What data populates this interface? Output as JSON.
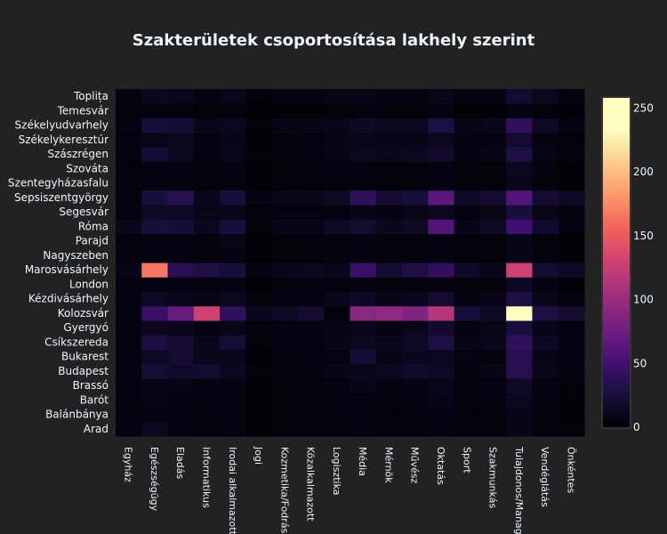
{
  "chart_data": {
    "type": "heatmap",
    "title": "Szakterületek csoportosítása lakhely szerint",
    "x_categories": [
      "Egyház",
      "Egészségügy",
      "Eladás",
      "Informatikus",
      "Irodai alkalmazott",
      "Jogi",
      "Kozmetika/Fodrász",
      "Közalkalmazott",
      "Logisztika",
      "Média",
      "Mérnök",
      "Művész",
      "Oktatás",
      "Sport",
      "Szakmunkás",
      "Tulajdonos/Manager",
      "Vendéglátás",
      "Önkéntes"
    ],
    "y_categories": [
      "Arad",
      "Balánbánya",
      "Barót",
      "Brassó",
      "Budapest",
      "Bukarest",
      "Csíkszereda",
      "Gyergyó",
      "Kolozsvár",
      "Kézdivásárhely",
      "London",
      "Marosvásárhely",
      "Nagyszeben",
      "Parajd",
      "Róma",
      "Segesvár",
      "Sepsiszentgyörgy",
      "Szentegyházasfalu",
      "Szováta",
      "Szászrégen",
      "Székelykeresztúr",
      "Székelyudvarhely",
      "Temesvár",
      "Toplița"
    ],
    "z": [
      [
        5,
        12,
        6,
        4,
        5,
        2,
        3,
        3,
        4,
        5,
        4,
        4,
        6,
        3,
        4,
        8,
        4,
        3
      ],
      [
        4,
        6,
        5,
        4,
        5,
        2,
        3,
        4,
        6,
        5,
        3,
        4,
        6,
        3,
        4,
        8,
        4,
        2
      ],
      [
        5,
        8,
        6,
        5,
        6,
        2,
        3,
        4,
        5,
        5,
        4,
        5,
        9,
        4,
        5,
        12,
        5,
        3
      ],
      [
        5,
        9,
        7,
        6,
        6,
        2,
        3,
        4,
        5,
        8,
        6,
        6,
        10,
        4,
        5,
        15,
        6,
        3
      ],
      [
        6,
        22,
        18,
        20,
        12,
        3,
        5,
        6,
        8,
        10,
        12,
        18,
        14,
        6,
        8,
        35,
        10,
        5
      ],
      [
        6,
        15,
        20,
        10,
        10,
        2,
        4,
        5,
        6,
        22,
        8,
        12,
        12,
        5,
        4,
        35,
        8,
        4
      ],
      [
        6,
        28,
        20,
        10,
        22,
        3,
        6,
        6,
        8,
        12,
        10,
        15,
        30,
        8,
        10,
        40,
        14,
        6
      ],
      [
        5,
        12,
        10,
        6,
        8,
        3,
        5,
        6,
        7,
        10,
        6,
        10,
        18,
        6,
        8,
        25,
        8,
        4
      ],
      [
        6,
        45,
        70,
        130,
        40,
        10,
        15,
        20,
        3,
        90,
        95,
        85,
        115,
        25,
        15,
        255,
        28,
        20
      ],
      [
        6,
        15,
        10,
        8,
        12,
        3,
        6,
        6,
        10,
        14,
        8,
        10,
        20,
        6,
        8,
        28,
        10,
        4
      ],
      [
        4,
        6,
        5,
        4,
        6,
        2,
        4,
        5,
        4,
        6,
        4,
        4,
        6,
        3,
        3,
        14,
        6,
        2
      ],
      [
        8,
        165,
        35,
        30,
        25,
        5,
        10,
        12,
        10,
        45,
        20,
        30,
        40,
        15,
        10,
        130,
        20,
        15
      ],
      [
        4,
        6,
        5,
        4,
        5,
        2,
        3,
        3,
        4,
        5,
        4,
        4,
        6,
        3,
        3,
        8,
        4,
        2
      ],
      [
        4,
        6,
        5,
        4,
        8,
        2,
        3,
        4,
        6,
        5,
        4,
        4,
        6,
        3,
        4,
        8,
        4,
        2
      ],
      [
        10,
        25,
        22,
        12,
        25,
        3,
        8,
        8,
        15,
        20,
        12,
        15,
        60,
        8,
        15,
        50,
        18,
        6
      ],
      [
        5,
        15,
        14,
        8,
        10,
        3,
        5,
        5,
        6,
        8,
        6,
        8,
        12,
        6,
        8,
        25,
        8,
        4
      ],
      [
        6,
        25,
        35,
        10,
        25,
        5,
        10,
        10,
        15,
        40,
        20,
        25,
        65,
        15,
        20,
        60,
        20,
        15
      ],
      [
        4,
        6,
        5,
        4,
        6,
        2,
        3,
        3,
        4,
        5,
        3,
        4,
        6,
        3,
        3,
        10,
        4,
        2
      ],
      [
        4,
        6,
        5,
        4,
        5,
        2,
        3,
        4,
        5,
        5,
        4,
        4,
        6,
        3,
        3,
        12,
        5,
        2
      ],
      [
        5,
        22,
        12,
        6,
        10,
        3,
        6,
        6,
        8,
        12,
        10,
        12,
        18,
        6,
        8,
        30,
        8,
        4
      ],
      [
        4,
        10,
        12,
        6,
        8,
        2,
        4,
        4,
        8,
        10,
        8,
        8,
        12,
        6,
        6,
        20,
        6,
        3
      ],
      [
        5,
        25,
        22,
        10,
        12,
        3,
        8,
        8,
        10,
        14,
        12,
        12,
        28,
        8,
        10,
        40,
        14,
        6
      ],
      [
        3,
        5,
        4,
        3,
        4,
        1,
        2,
        2,
        3,
        4,
        3,
        3,
        5,
        2,
        2,
        6,
        3,
        2
      ],
      [
        5,
        12,
        10,
        6,
        10,
        3,
        5,
        5,
        8,
        8,
        6,
        6,
        10,
        5,
        6,
        20,
        12,
        4
      ]
    ],
    "zmin": 0,
    "zmax": 258,
    "colorscale": "magma",
    "colorbar_ticks": [
      0,
      50,
      100,
      150,
      200,
      250
    ]
  }
}
